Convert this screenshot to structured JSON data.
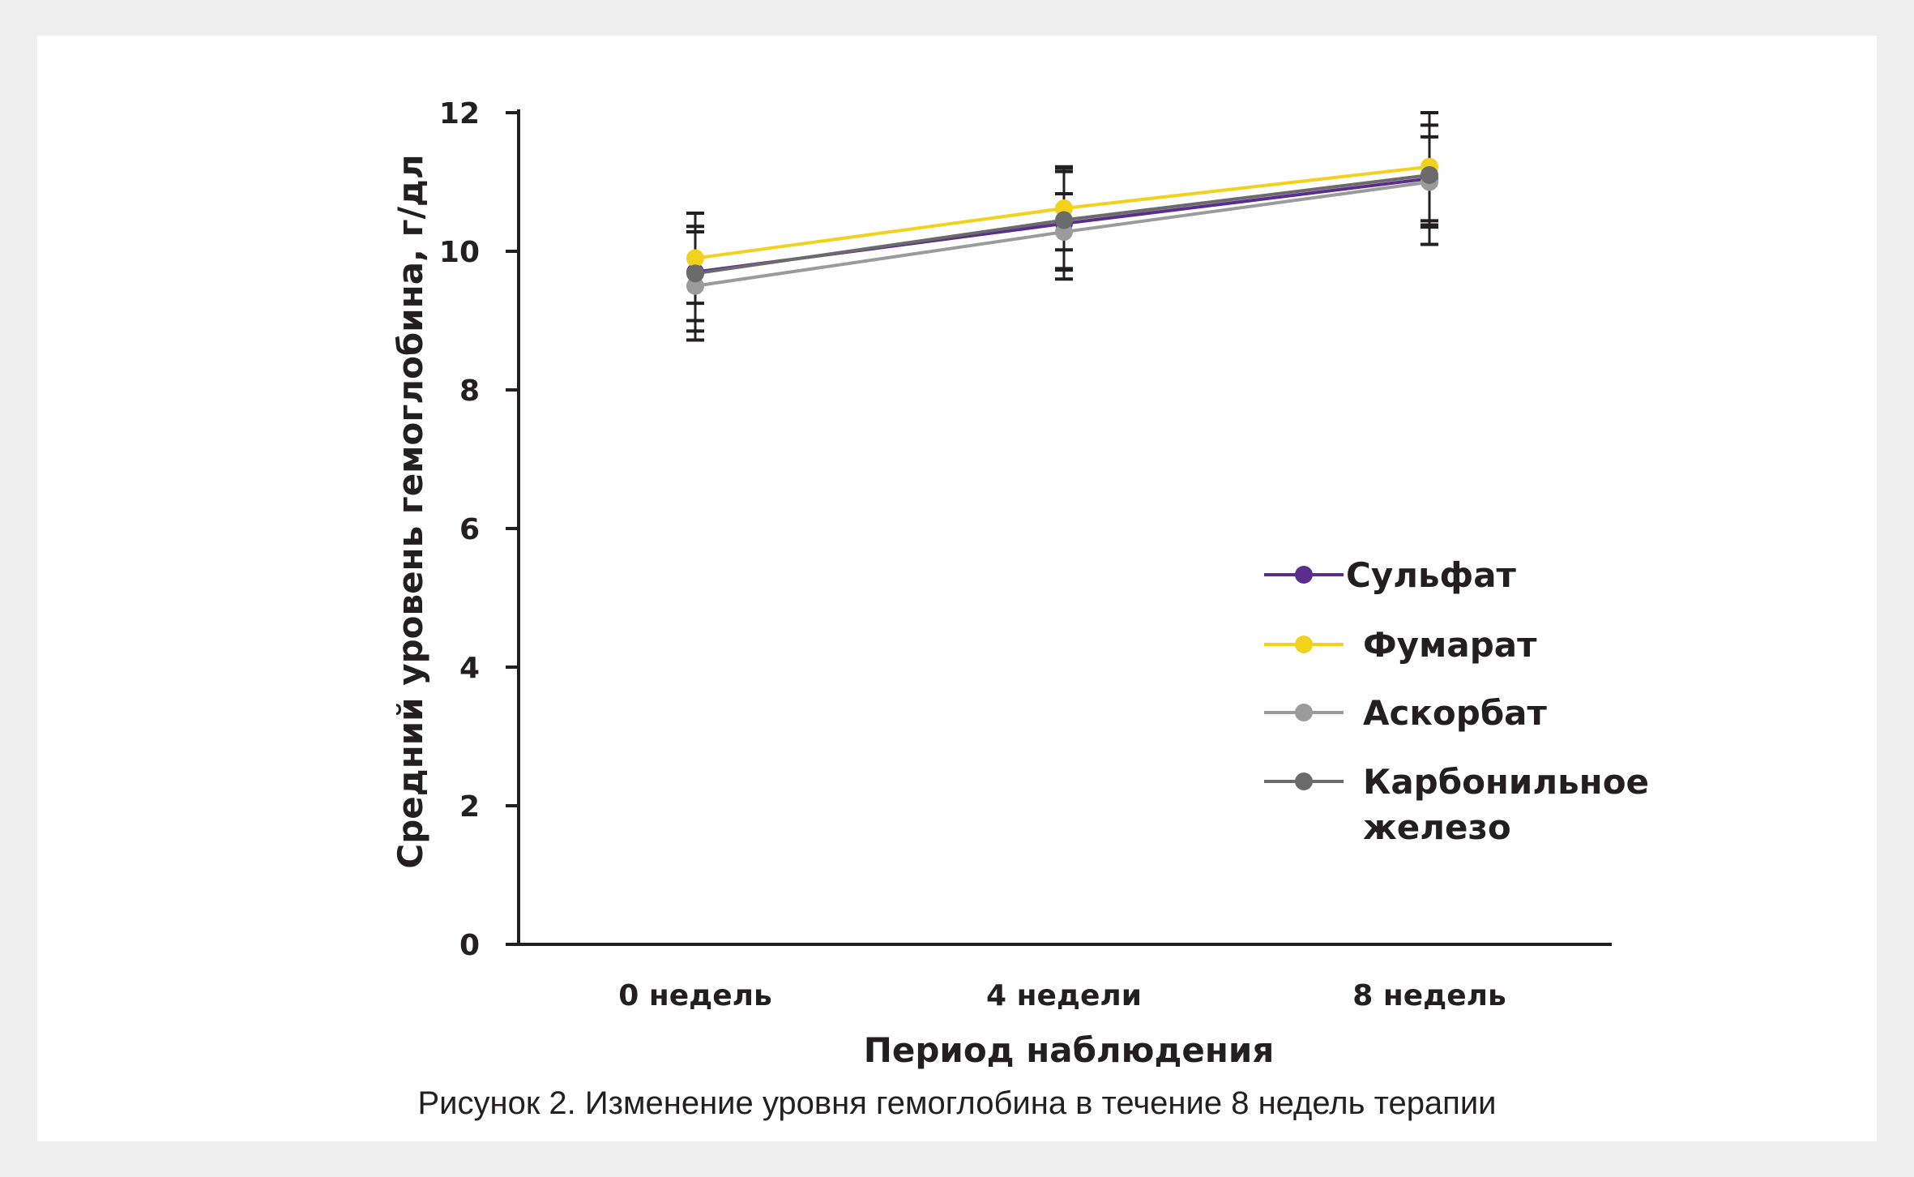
{
  "chart_data": {
    "type": "line",
    "categories": [
      "0 недель",
      "4 недели",
      "8 недель"
    ],
    "xlabel": "Период наблюдения",
    "ylabel": "Средний уровень гемоглобина, г/дл",
    "ylim": [
      0,
      12
    ],
    "yticks": [
      0,
      2,
      4,
      6,
      8,
      10,
      12
    ],
    "grid": false,
    "legend_position": "right",
    "series": [
      {
        "name": "Сульфат",
        "color": "#5b2d8c",
        "values": [
          9.7,
          10.4,
          11.05
        ],
        "error": [
          0.85,
          0.8,
          0.95
        ]
      },
      {
        "name": "Фумарат",
        "color": "#f2d21c",
        "values": [
          9.9,
          10.62,
          11.22
        ],
        "error": [
          0.65,
          0.6,
          0.78
        ]
      },
      {
        "name": "Аскорбат",
        "color": "#9b9b9b",
        "values": [
          9.5,
          10.28,
          11.0
        ],
        "error": [
          0.78,
          0.55,
          0.65
        ]
      },
      {
        "name": "Карбонильное железо",
        "legend_lines": [
          "Карбонильное",
          "железо"
        ],
        "color": "#6b6b6b",
        "values": [
          9.68,
          10.45,
          11.1
        ],
        "error": [
          0.68,
          0.7,
          0.72
        ]
      }
    ]
  },
  "caption": "Рисунок 2. Изменение уровня гемоглобина в течение 8 недель терапии"
}
